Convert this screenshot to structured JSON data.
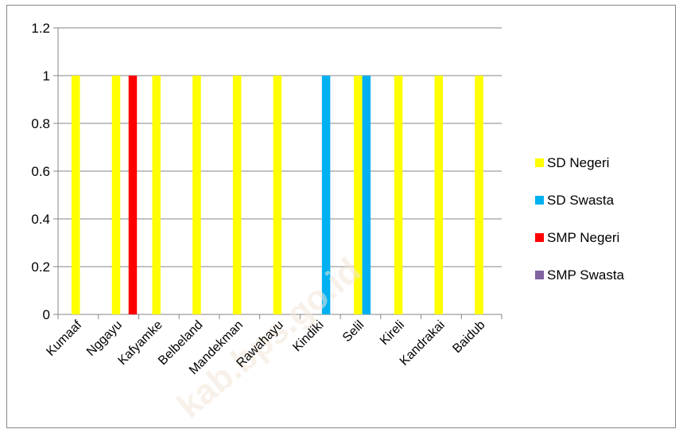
{
  "chart_data": {
    "type": "bar",
    "title": "",
    "xlabel": "",
    "ylabel": "",
    "ylim": [
      0,
      1.2
    ],
    "yticks": [
      "0",
      "0.2",
      "0.4",
      "0.6",
      "0.8",
      "1",
      "1.2"
    ],
    "grid": true,
    "legend_position": "right",
    "categories": [
      "Kumaaf",
      "Nggayu",
      "Kafyamke",
      "Belbeland",
      "Mandekman",
      "Rawahayu",
      "Kindiki",
      "Selil",
      "Kireli",
      "Kandrakai",
      "Baidub"
    ],
    "series": [
      {
        "name": "SD Negeri",
        "color": "#ffff00",
        "values": [
          1,
          1,
          1,
          1,
          1,
          1,
          0,
          1,
          1,
          1,
          1
        ]
      },
      {
        "name": "SD Swasta",
        "color": "#00b0f0",
        "values": [
          0,
          0,
          0,
          0,
          0,
          0,
          1,
          1,
          0,
          0,
          0
        ]
      },
      {
        "name": "SMP Negeri",
        "color": "#ff0000",
        "values": [
          0,
          1,
          0,
          0,
          0,
          0,
          0,
          0,
          0,
          0,
          0
        ]
      },
      {
        "name": "SMP Swasta",
        "color": "#8064a2",
        "values": [
          0,
          0,
          0,
          0,
          0,
          0,
          0,
          0,
          0,
          0,
          0
        ]
      }
    ]
  },
  "watermark_text": "kab.bps.go.id"
}
